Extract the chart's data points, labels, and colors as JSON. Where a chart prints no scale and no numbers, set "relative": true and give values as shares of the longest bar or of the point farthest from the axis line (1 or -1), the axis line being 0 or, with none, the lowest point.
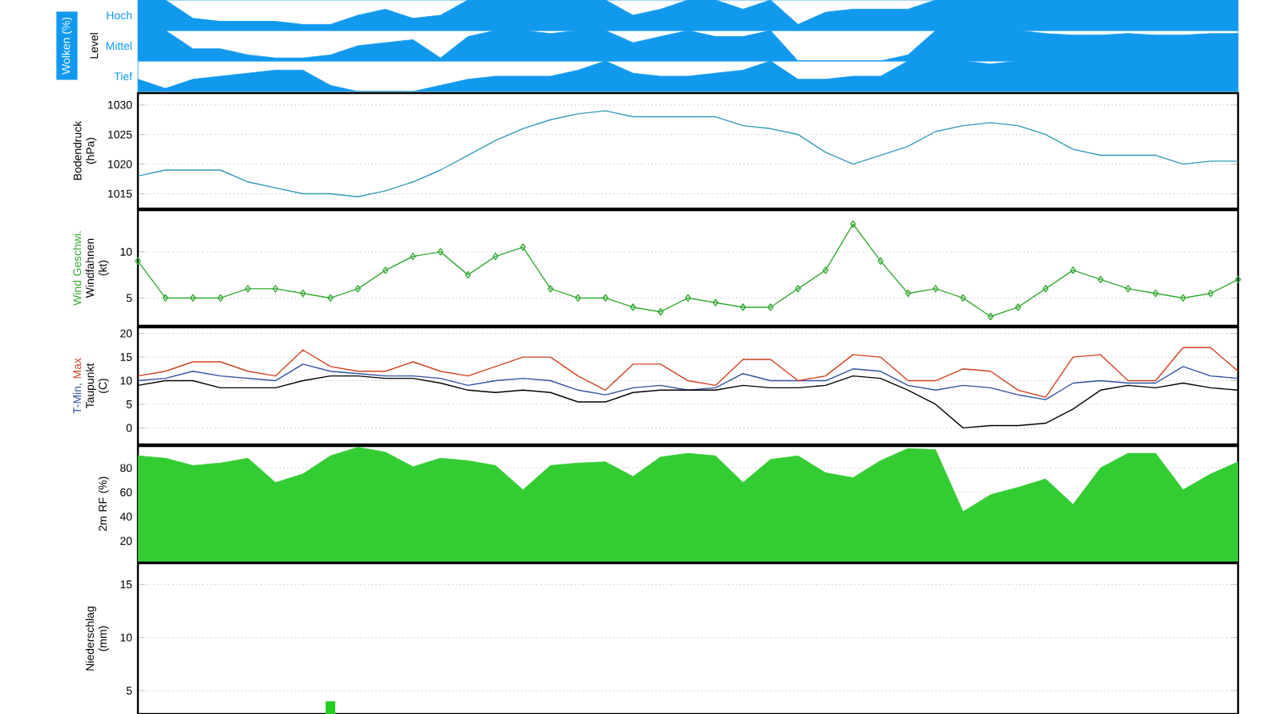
{
  "chart_data": [
    {
      "type": "area",
      "relative": true,
      "tick_labels": "y",
      "categories": [
        null,
        null,
        null,
        null,
        null,
        null,
        null,
        null,
        null,
        null,
        null,
        null,
        null,
        null,
        null,
        null,
        null,
        null,
        null,
        null,
        null,
        null,
        null,
        null,
        null,
        null,
        null,
        null,
        null,
        null,
        null,
        null,
        null,
        null,
        null,
        null,
        null,
        null,
        null,
        null,
        null
      ],
      "series": [
        {
          "name": "Hoch",
          "color": "#1199ee",
          "values": [
            1,
            1,
            0.4,
            0.3,
            0.3,
            0.3,
            0.2,
            0.2,
            0.5,
            0.7,
            0.4,
            0.5,
            1,
            1,
            1,
            1,
            1,
            1,
            0.5,
            0.7,
            1,
            1,
            0.7,
            1,
            0.2,
            0.6,
            0.7,
            0.7,
            0.7,
            1,
            1,
            1,
            1,
            1,
            1,
            1,
            1,
            1,
            1,
            1,
            1
          ]
        }
      ]
    },
    {
      "type": "area",
      "relative": true,
      "tick_labels": "y",
      "ylabel": "Wolken (%)",
      "annotations": [
        "Level"
      ],
      "categories": [
        null,
        null,
        null,
        null,
        null,
        null,
        null,
        null,
        null,
        null,
        null,
        null,
        null,
        null,
        null,
        null,
        null,
        null,
        null,
        null,
        null,
        null,
        null,
        null,
        null,
        null,
        null,
        null,
        null,
        null,
        null,
        null,
        null,
        null,
        null,
        null,
        null,
        null,
        null,
        null,
        null
      ],
      "series": [
        {
          "name": "Mittel",
          "color": "#1199ee",
          "values": [
            1,
            1,
            0.4,
            0.4,
            0.2,
            0.1,
            0.1,
            0.2,
            0.5,
            0.6,
            0.7,
            0.1,
            0.8,
            1,
            1,
            0.9,
            1,
            1,
            0.6,
            0.8,
            1,
            0.8,
            0.8,
            1,
            0,
            0,
            0,
            0,
            0.2,
            1,
            1,
            1,
            1,
            0.9,
            0.85,
            0.85,
            0.9,
            0.85,
            0.85,
            0.9,
            0.9
          ]
        }
      ]
    },
    {
      "type": "area",
      "relative": true,
      "tick_labels": "y",
      "categories": [
        null,
        null,
        null,
        null,
        null,
        null,
        null,
        null,
        null,
        null,
        null,
        null,
        null,
        null,
        null,
        null,
        null,
        null,
        null,
        null,
        null,
        null,
        null,
        null,
        null,
        null,
        null,
        null,
        null,
        null,
        null,
        null,
        null,
        null,
        null,
        null,
        null,
        null,
        null,
        null,
        null
      ],
      "series": [
        {
          "name": "Tief",
          "color": "#1199ee",
          "values": [
            0.4,
            0.1,
            0.4,
            0.5,
            0.6,
            0.7,
            0.7,
            0.2,
            0,
            0,
            0,
            0.2,
            0.4,
            0.5,
            0.5,
            0.5,
            0.7,
            1,
            0.6,
            0.5,
            0.5,
            0.6,
            0.7,
            1,
            0.4,
            0.4,
            0.5,
            0.5,
            1,
            1,
            1,
            0.9,
            1,
            1,
            1,
            1,
            1,
            1,
            1,
            1,
            1
          ]
        }
      ]
    },
    {
      "type": "line",
      "ylabel": "Bodendruck (hPa)",
      "grid": "y",
      "tick_labels": "y",
      "ylim": [
        1012.5,
        1032
      ],
      "yticks": [
        1015,
        1020,
        1025,
        1030
      ],
      "categories": [
        null,
        null,
        null,
        null,
        null,
        null,
        null,
        null,
        null,
        null,
        null,
        null,
        null,
        null,
        null,
        null,
        null,
        null,
        null,
        null,
        null,
        null,
        null,
        null,
        null,
        null,
        null,
        null,
        null,
        null,
        null,
        null,
        null,
        null,
        null,
        null,
        null,
        null,
        null,
        null,
        null
      ],
      "series": [
        {
          "color": "#3399bb",
          "values": [
            1018,
            1019,
            1019,
            1019,
            1017,
            1016,
            1015,
            1015,
            1014.5,
            1015.5,
            1017,
            1019,
            1021.5,
            1024,
            1026,
            1027.5,
            1028.5,
            1029,
            1028,
            1028,
            1028,
            1028,
            1026.5,
            1026,
            1025,
            1022,
            1020,
            1021.5,
            1023,
            1025.5,
            1026.5,
            1027,
            1026.5,
            1025,
            1022.5,
            1021.5,
            1021.5,
            1021.5,
            1020,
            1020.5,
            1020.5
          ]
        }
      ]
    },
    {
      "type": "line",
      "ylabel": "Windfahnen (kt)",
      "grid": "y",
      "tick_labels": "y",
      "marker": "diamond",
      "ylim": [
        2,
        14.5
      ],
      "yticks": [
        5,
        10
      ],
      "categories": [
        null,
        null,
        null,
        null,
        null,
        null,
        null,
        null,
        null,
        null,
        null,
        null,
        null,
        null,
        null,
        null,
        null,
        null,
        null,
        null,
        null,
        null,
        null,
        null,
        null,
        null,
        null,
        null,
        null,
        null,
        null,
        null,
        null,
        null,
        null,
        null,
        null,
        null,
        null,
        null,
        null
      ],
      "series": [
        {
          "name": "Wind Geschwi.",
          "color": "#33aa33",
          "values": [
            9,
            5,
            5,
            5,
            6,
            6,
            5.5,
            5,
            6,
            8,
            9.5,
            10,
            7.5,
            9.5,
            10.5,
            6,
            5,
            5,
            4,
            3.5,
            5,
            4.5,
            4,
            4,
            6,
            8,
            13,
            9,
            5.5,
            6,
            5,
            3,
            4,
            6,
            8,
            7,
            6,
            5.5,
            5,
            5.5,
            7
          ]
        }
      ]
    },
    {
      "type": "line",
      "ylabel": "(C)",
      "grid": "y",
      "tick_labels": "y",
      "ylim": [
        -3.5,
        21.3
      ],
      "yticks": [
        0,
        5,
        10,
        15,
        20
      ],
      "categories": [
        null,
        null,
        null,
        null,
        null,
        null,
        null,
        null,
        null,
        null,
        null,
        null,
        null,
        null,
        null,
        null,
        null,
        null,
        null,
        null,
        null,
        null,
        null,
        null,
        null,
        null,
        null,
        null,
        null,
        null,
        null,
        null,
        null,
        null,
        null,
        null,
        null,
        null,
        null,
        null,
        null
      ],
      "series": [
        {
          "name": "T-Min,",
          "color": "#3050a0",
          "values": [
            10,
            10.5,
            12,
            11,
            10.5,
            10,
            13.5,
            12,
            11.5,
            11,
            11,
            10.5,
            9,
            10,
            10.5,
            10,
            8,
            7,
            8.5,
            9,
            8,
            8.5,
            11.5,
            10,
            10,
            10,
            12.5,
            12,
            9,
            8,
            9,
            8.5,
            7,
            6,
            9.5,
            10,
            9.5,
            9.5,
            13,
            11,
            10.5
          ]
        },
        {
          "name": "Max",
          "color": "#d04020",
          "values": [
            11,
            12,
            14,
            14,
            12,
            11,
            16.5,
            13,
            12,
            12,
            14,
            12,
            11,
            13,
            15,
            15,
            11,
            8,
            13.5,
            13.5,
            10,
            9,
            14.5,
            14.5,
            10,
            11,
            15.5,
            15,
            10,
            10,
            12.5,
            12,
            8,
            6.5,
            15,
            15.5,
            10,
            10,
            17,
            17,
            12
          ]
        },
        {
          "name": "Taupunkt",
          "color": "#000000",
          "values": [
            9,
            10,
            10,
            8.5,
            8.5,
            8.5,
            10,
            11,
            11,
            10.5,
            10.5,
            9.5,
            8,
            7.5,
            8,
            7.5,
            5.5,
            5.5,
            7.5,
            8,
            8,
            8,
            9,
            8.5,
            8.5,
            9,
            11,
            10.5,
            8,
            5,
            0,
            0.5,
            0.5,
            1,
            4,
            8,
            9,
            8.5,
            9.5,
            8.5,
            8
          ]
        }
      ]
    },
    {
      "type": "area",
      "ylabel": "2m RF (%)",
      "grid": "y",
      "tick_labels": "y",
      "ylim": [
        3,
        98
      ],
      "yticks": [
        20,
        40,
        60,
        80
      ],
      "categories": [
        null,
        null,
        null,
        null,
        null,
        null,
        null,
        null,
        null,
        null,
        null,
        null,
        null,
        null,
        null,
        null,
        null,
        null,
        null,
        null,
        null,
        null,
        null,
        null,
        null,
        null,
        null,
        null,
        null,
        null,
        null,
        null,
        null,
        null,
        null,
        null,
        null,
        null,
        null,
        null,
        null
      ],
      "series": [
        {
          "color": "#33cc33",
          "values": [
            90,
            88,
            82,
            84,
            88,
            68,
            75,
            90,
            97,
            93,
            81,
            88,
            86,
            82,
            62,
            82,
            84,
            85,
            73,
            89,
            92,
            90,
            68,
            87,
            90,
            76,
            72,
            86,
            96,
            95,
            44,
            58,
            64,
            71,
            50,
            80,
            92,
            92,
            62,
            75,
            85
          ]
        }
      ]
    },
    {
      "type": "bar",
      "ylabel": "Niederschlag (mm)",
      "grid": "y",
      "tick_labels": "y",
      "ylim": [
        2.8,
        17
      ],
      "yticks": [
        5,
        10,
        15
      ],
      "categories": [
        null,
        null,
        null,
        null,
        null,
        null,
        null,
        null,
        null,
        null,
        null,
        null,
        null,
        null,
        null,
        null,
        null,
        null,
        null,
        null,
        null,
        null,
        null,
        null,
        null,
        null,
        null,
        null,
        null,
        null,
        null,
        null,
        null,
        null,
        null,
        null,
        null,
        null,
        null,
        null,
        null
      ],
      "series": [
        {
          "color": "#22cc22",
          "values": [
            null,
            null,
            null,
            null,
            null,
            null,
            null,
            4,
            null,
            null,
            null,
            null,
            null,
            null,
            null,
            null,
            null,
            null,
            null,
            null,
            null,
            null,
            null,
            null,
            null,
            null,
            null,
            null,
            null,
            null,
            null,
            null,
            null,
            null,
            null,
            null,
            null,
            null,
            null,
            null,
            null
          ]
        }
      ]
    }
  ]
}
